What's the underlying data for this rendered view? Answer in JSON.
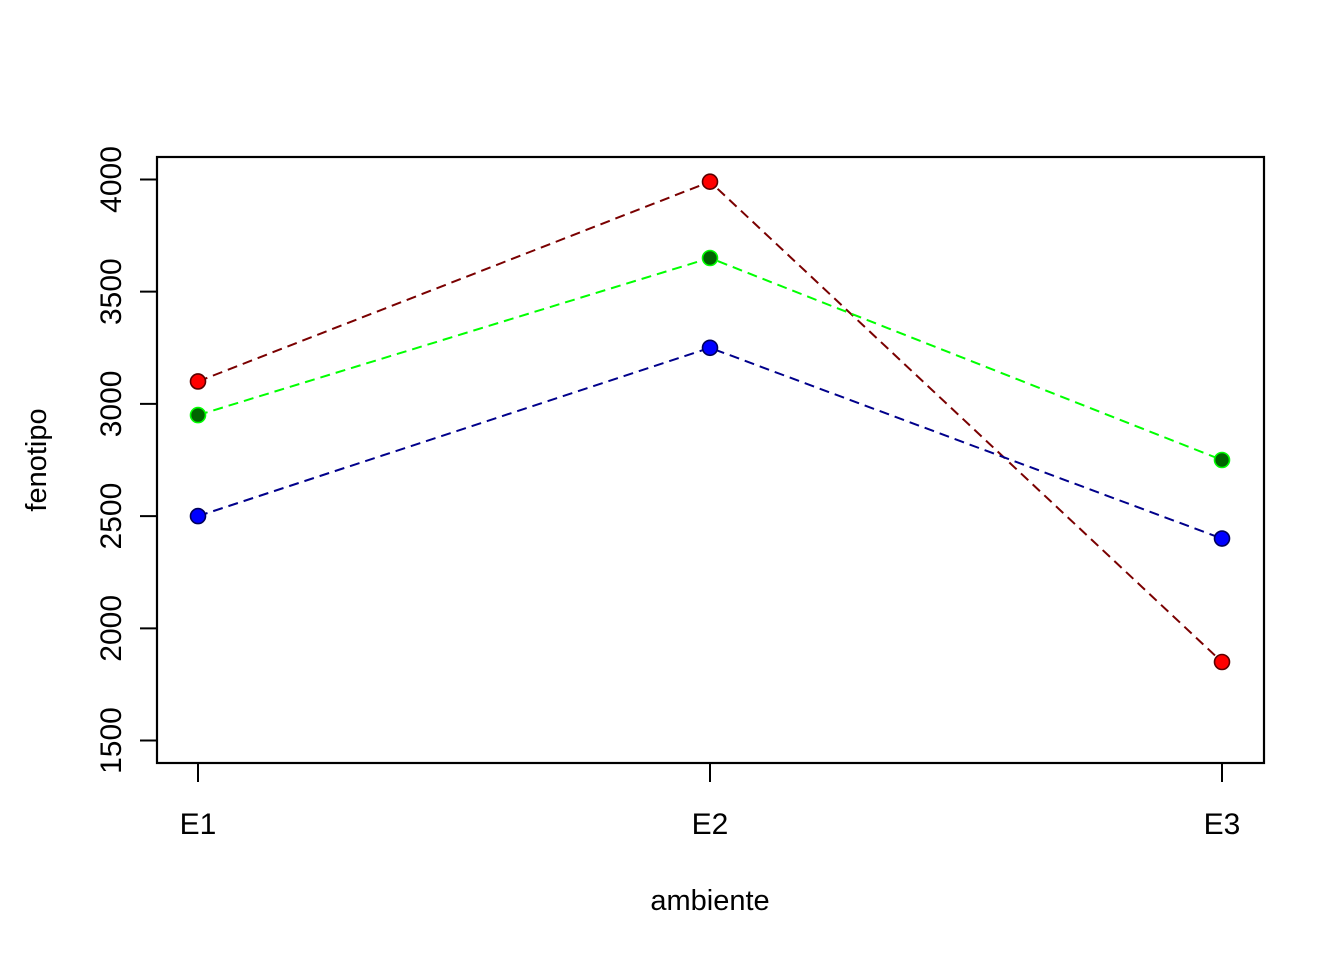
{
  "chart_data": {
    "type": "line",
    "title": "",
    "xlabel": "ambiente",
    "ylabel": "fenotipo",
    "categories": [
      "E1",
      "E2",
      "E3"
    ],
    "ylim": [
      1400,
      4100
    ],
    "yticks": [
      1500,
      2000,
      2500,
      3000,
      3500,
      4000
    ],
    "grid": false,
    "legend": null,
    "series": [
      {
        "values": [
          3100,
          3990,
          1850
        ],
        "line_color": "#7a0000",
        "point_fill": "#ff0000",
        "point_edge": "#5a0000"
      },
      {
        "values": [
          2950,
          3650,
          2750
        ],
        "line_color": "#00ff00",
        "point_fill": "#006400",
        "point_edge": "#00ff00"
      },
      {
        "values": [
          2500,
          3250,
          2400
        ],
        "line_color": "#00008b",
        "point_fill": "#0000ff",
        "point_edge": "#00005a"
      }
    ]
  }
}
